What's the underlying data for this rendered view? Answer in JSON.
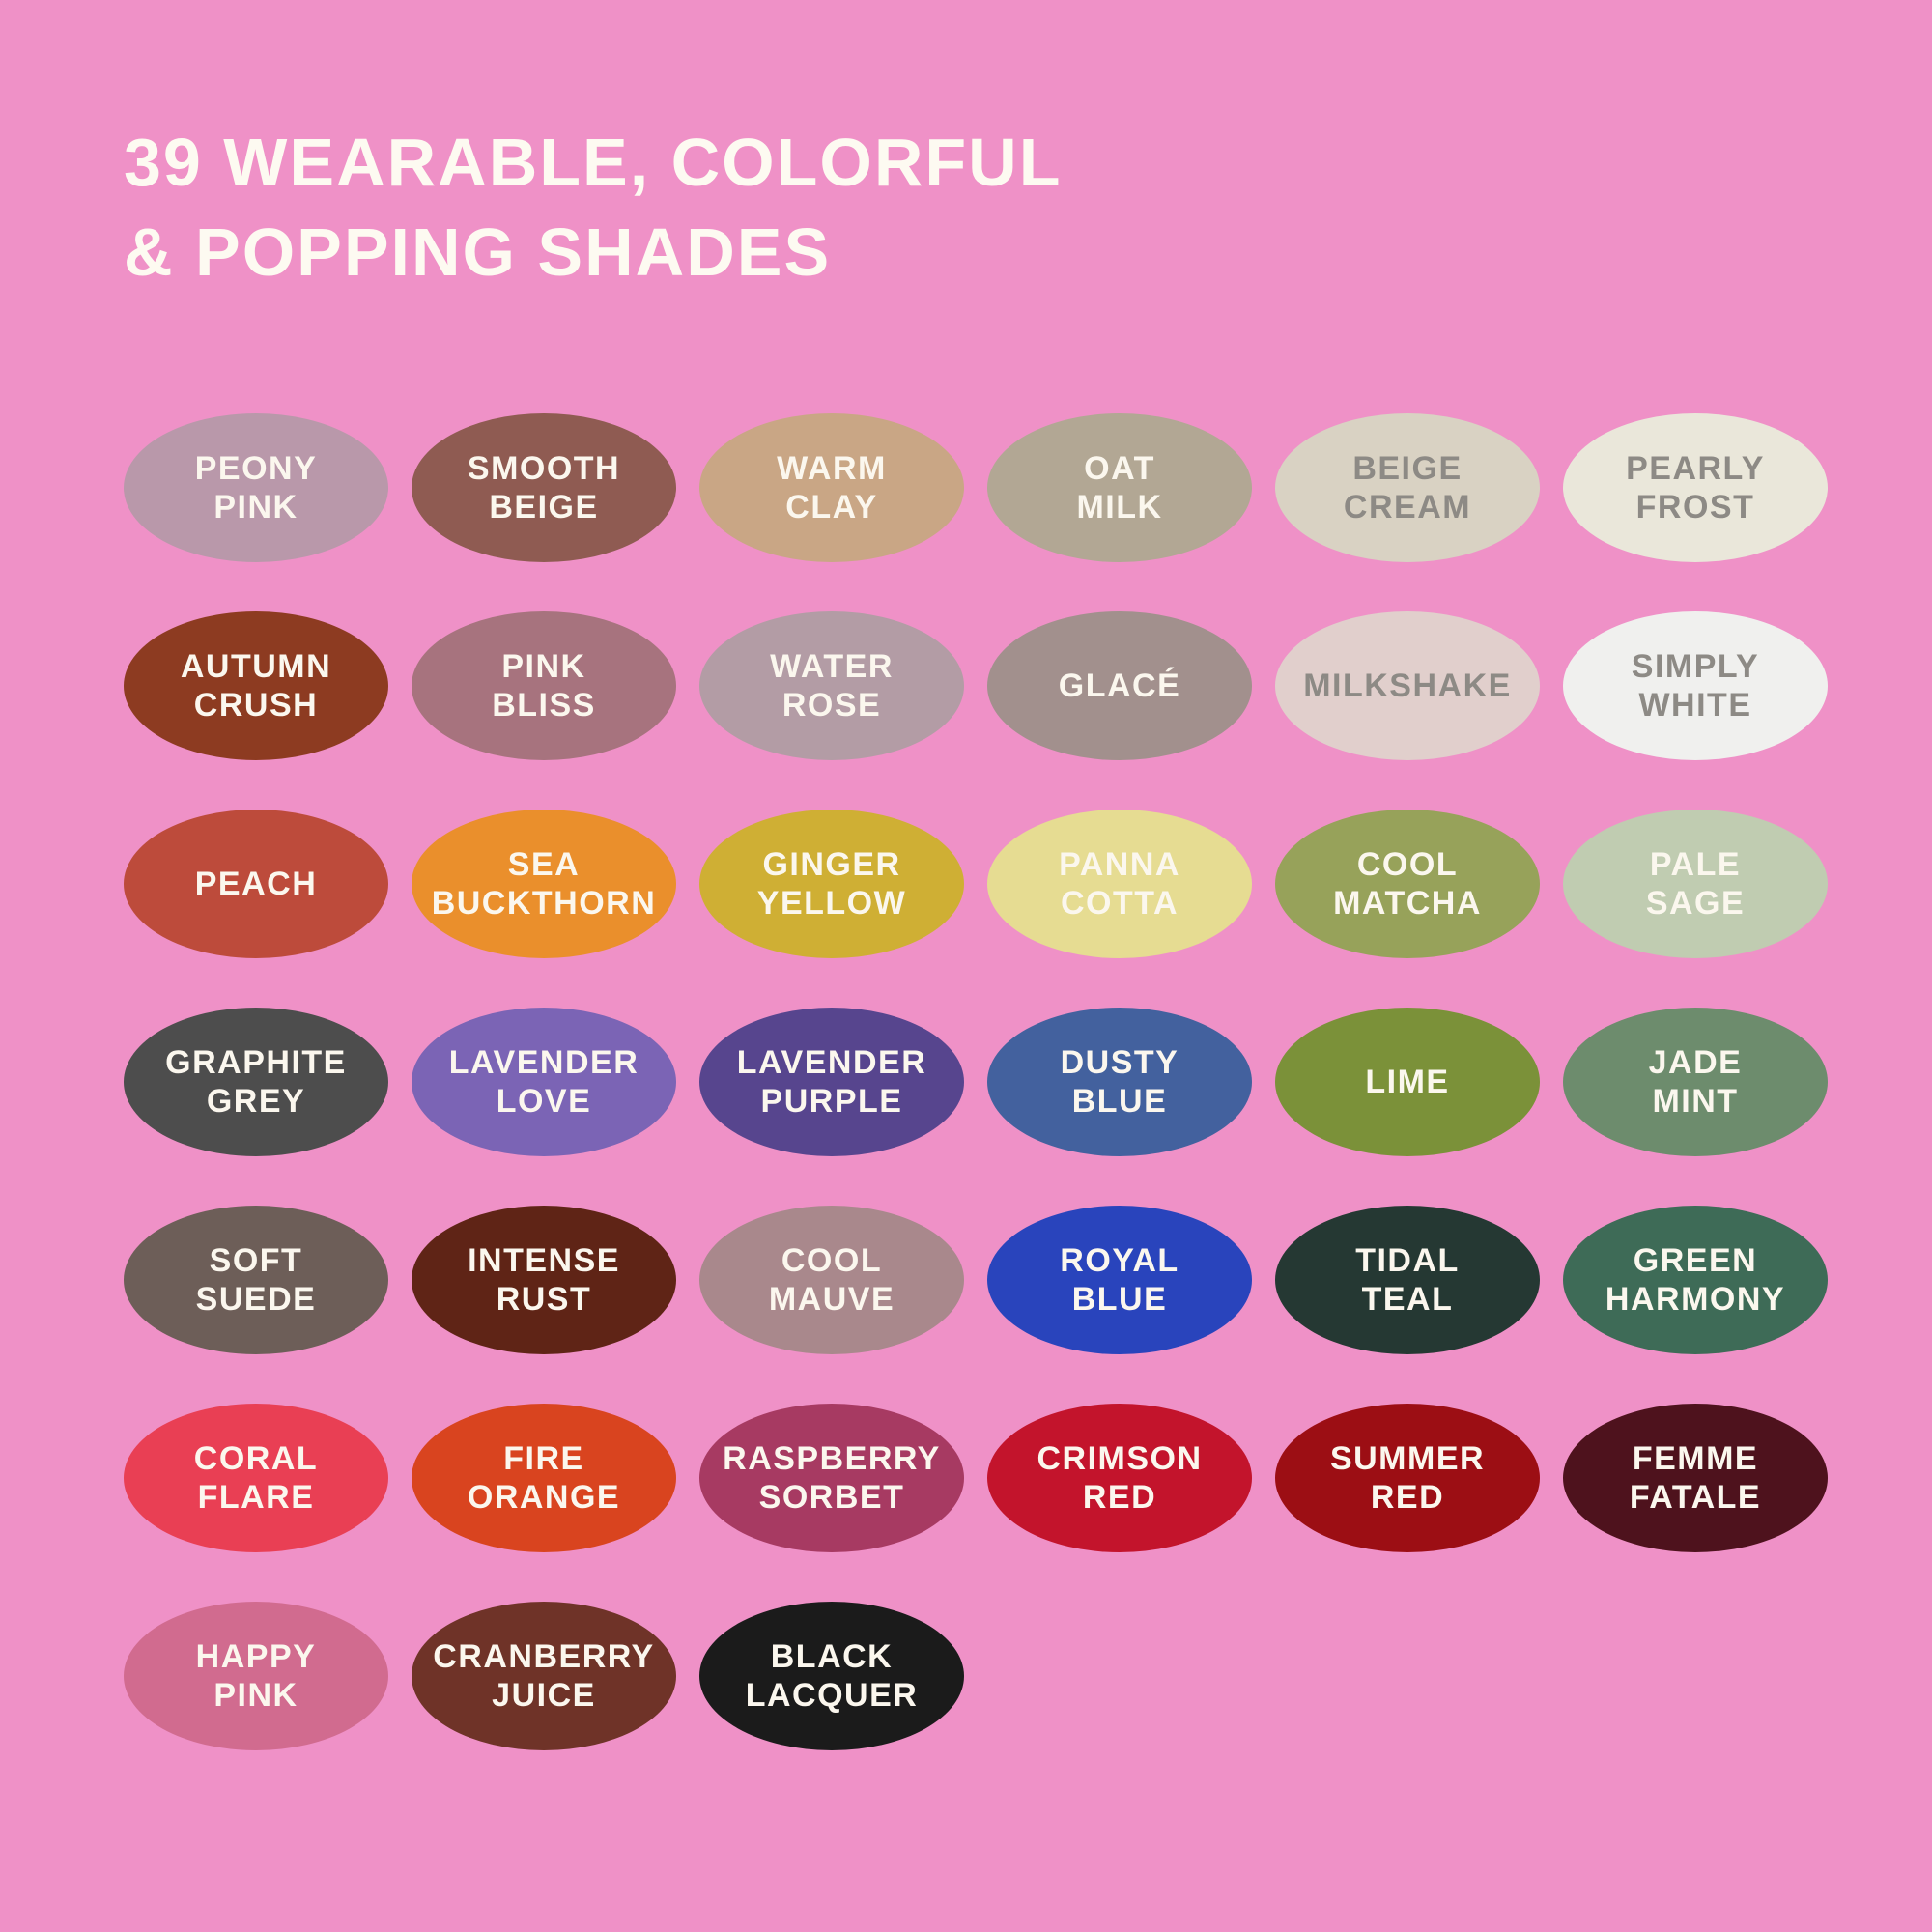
{
  "title": {
    "line1": "39 WEARABLE, COLORFUL",
    "line2": "& POPPING SHADES"
  },
  "background_color": "#EF91C7",
  "text_colors": {
    "light": "#FBF7EE",
    "muted": "#8D8A85"
  },
  "swatches": [
    {
      "id": "peony-pink",
      "label_lines": [
        "PEONY",
        "PINK"
      ],
      "color": "#B998AA",
      "text": "light"
    },
    {
      "id": "smooth-beige",
      "label_lines": [
        "SMOOTH",
        "BEIGE"
      ],
      "color": "#8F5B52",
      "text": "light"
    },
    {
      "id": "warm-clay",
      "label_lines": [
        "WARM",
        "CLAY"
      ],
      "color": "#C9A685",
      "text": "light"
    },
    {
      "id": "oat-milk",
      "label_lines": [
        "OAT",
        "MILK"
      ],
      "color": "#B2A794",
      "text": "light"
    },
    {
      "id": "beige-cream",
      "label_lines": [
        "BEIGE",
        "CREAM"
      ],
      "color": "#D9D2C3",
      "text": "muted"
    },
    {
      "id": "pearly-frost",
      "label_lines": [
        "PEARLY",
        "FROST"
      ],
      "color": "#EAE7DA",
      "text": "muted"
    },
    {
      "id": "autumn-crush",
      "label_lines": [
        "AUTUMN",
        "CRUSH"
      ],
      "color": "#8D3B21",
      "text": "light"
    },
    {
      "id": "pink-bliss",
      "label_lines": [
        "PINK",
        "BLISS"
      ],
      "color": "#A7737E",
      "text": "light"
    },
    {
      "id": "water-rose",
      "label_lines": [
        "WATER",
        "ROSE"
      ],
      "color": "#B39CA5",
      "text": "light"
    },
    {
      "id": "glace",
      "label_lines": [
        "GLACÉ"
      ],
      "color": "#A2908D",
      "text": "light"
    },
    {
      "id": "milkshake",
      "label_lines": [
        "MILKSHAKE"
      ],
      "color": "#E1CFCC",
      "text": "muted"
    },
    {
      "id": "simply-white",
      "label_lines": [
        "SIMPLY",
        "WHITE"
      ],
      "color": "#F0F0EE",
      "text": "muted"
    },
    {
      "id": "peach",
      "label_lines": [
        "PEACH"
      ],
      "color": "#BD4B3B",
      "text": "light"
    },
    {
      "id": "sea-buckthorn",
      "label_lines": [
        "SEA",
        "BUCKTHORN"
      ],
      "color": "#EA8F2C",
      "text": "light"
    },
    {
      "id": "ginger-yellow",
      "label_lines": [
        "GINGER",
        "YELLOW"
      ],
      "color": "#CFAF34",
      "text": "light"
    },
    {
      "id": "panna-cotta",
      "label_lines": [
        "PANNA",
        "COTTA"
      ],
      "color": "#E6DC92",
      "text": "light"
    },
    {
      "id": "cool-matcha",
      "label_lines": [
        "COOL",
        "MATCHA"
      ],
      "color": "#97A25A",
      "text": "light"
    },
    {
      "id": "pale-sage",
      "label_lines": [
        "PALE",
        "SAGE"
      ],
      "color": "#C0CCB1",
      "text": "light"
    },
    {
      "id": "graphite-grey",
      "label_lines": [
        "GRAPHITE",
        "GREY"
      ],
      "color": "#4D4D4D",
      "text": "light"
    },
    {
      "id": "lavender-love",
      "label_lines": [
        "LAVENDER",
        "LOVE"
      ],
      "color": "#7B64B5",
      "text": "light"
    },
    {
      "id": "lavender-purple",
      "label_lines": [
        "LAVENDER",
        "PURPLE"
      ],
      "color": "#57458E",
      "text": "light"
    },
    {
      "id": "dusty-blue",
      "label_lines": [
        "DUSTY",
        "BLUE"
      ],
      "color": "#43619E",
      "text": "light"
    },
    {
      "id": "lime",
      "label_lines": [
        "LIME"
      ],
      "color": "#7B9139",
      "text": "light"
    },
    {
      "id": "jade-mint",
      "label_lines": [
        "JADE",
        "MINT"
      ],
      "color": "#6D8C6D",
      "text": "light"
    },
    {
      "id": "soft-suede",
      "label_lines": [
        "SOFT",
        "SUEDE"
      ],
      "color": "#6D5E58",
      "text": "light"
    },
    {
      "id": "intense-rust",
      "label_lines": [
        "INTENSE",
        "RUST"
      ],
      "color": "#5F2416",
      "text": "light"
    },
    {
      "id": "cool-mauve",
      "label_lines": [
        "COOL",
        "MAUVE"
      ],
      "color": "#A9888C",
      "text": "light"
    },
    {
      "id": "royal-blue",
      "label_lines": [
        "ROYAL",
        "BLUE"
      ],
      "color": "#2944BC",
      "text": "light"
    },
    {
      "id": "tidal-teal",
      "label_lines": [
        "TIDAL",
        "TEAL"
      ],
      "color": "#253833",
      "text": "light"
    },
    {
      "id": "green-harmony",
      "label_lines": [
        "GREEN",
        "HARMONY"
      ],
      "color": "#3E6B57",
      "text": "light"
    },
    {
      "id": "coral-flare",
      "label_lines": [
        "CORAL",
        "FLARE"
      ],
      "color": "#E93F54",
      "text": "light"
    },
    {
      "id": "fire-orange",
      "label_lines": [
        "FIRE",
        "ORANGE"
      ],
      "color": "#D9441F",
      "text": "light"
    },
    {
      "id": "raspberry-sorbet",
      "label_lines": [
        "RASPBERRY",
        "SORBET"
      ],
      "color": "#A73A62",
      "text": "light"
    },
    {
      "id": "crimson-red",
      "label_lines": [
        "CRIMSON",
        "RED"
      ],
      "color": "#C3142C",
      "text": "light"
    },
    {
      "id": "summer-red",
      "label_lines": [
        "SUMMER",
        "RED"
      ],
      "color": "#9C0E14",
      "text": "light"
    },
    {
      "id": "femme-fatale",
      "label_lines": [
        "FEMME",
        "FATALE"
      ],
      "color": "#4E121D",
      "text": "light"
    },
    {
      "id": "happy-pink",
      "label_lines": [
        "HAPPY",
        "PINK"
      ],
      "color": "#D16B8F",
      "text": "light"
    },
    {
      "id": "cranberry-juice",
      "label_lines": [
        "CRANBERRY",
        "JUICE"
      ],
      "color": "#6F3328",
      "text": "light"
    },
    {
      "id": "black-lacquer",
      "label_lines": [
        "BLACK",
        "LACQUER"
      ],
      "color": "#1B1B1B",
      "text": "light"
    }
  ],
  "chart_data": {
    "type": "table",
    "title": "39 WEARABLE, COLORFUL & POPPING SHADES",
    "columns": [
      "shade_name",
      "color_hex"
    ],
    "rows": [
      [
        "PEONY PINK",
        "#B998AA"
      ],
      [
        "SMOOTH BEIGE",
        "#8F5B52"
      ],
      [
        "WARM CLAY",
        "#C9A685"
      ],
      [
        "OAT MILK",
        "#B2A794"
      ],
      [
        "BEIGE CREAM",
        "#D9D2C3"
      ],
      [
        "PEARLY FROST",
        "#EAE7DA"
      ],
      [
        "AUTUMN CRUSH",
        "#8D3B21"
      ],
      [
        "PINK BLISS",
        "#A7737E"
      ],
      [
        "WATER ROSE",
        "#B39CA5"
      ],
      [
        "GLACÉ",
        "#A2908D"
      ],
      [
        "MILKSHAKE",
        "#E1CFCC"
      ],
      [
        "SIMPLY WHITE",
        "#F0F0EE"
      ],
      [
        "PEACH",
        "#BD4B3B"
      ],
      [
        "SEA BUCKTHORN",
        "#EA8F2C"
      ],
      [
        "GINGER YELLOW",
        "#CFAF34"
      ],
      [
        "PANNA COTTA",
        "#E6DC92"
      ],
      [
        "COOL MATCHA",
        "#97A25A"
      ],
      [
        "PALE SAGE",
        "#C0CCB1"
      ],
      [
        "GRAPHITE GREY",
        "#4D4D4D"
      ],
      [
        "LAVENDER LOVE",
        "#7B64B5"
      ],
      [
        "LAVENDER PURPLE",
        "#57458E"
      ],
      [
        "DUSTY BLUE",
        "#43619E"
      ],
      [
        "LIME",
        "#7B9139"
      ],
      [
        "JADE MINT",
        "#6D8C6D"
      ],
      [
        "SOFT SUEDE",
        "#6D5E58"
      ],
      [
        "INTENSE RUST",
        "#5F2416"
      ],
      [
        "COOL MAUVE",
        "#A9888C"
      ],
      [
        "ROYAL BLUE",
        "#2944BC"
      ],
      [
        "TIDAL TEAL",
        "#253833"
      ],
      [
        "GREEN HARMONY",
        "#3E6B57"
      ],
      [
        "CORAL FLARE",
        "#E93F54"
      ],
      [
        "FIRE ORANGE",
        "#D9441F"
      ],
      [
        "RASPBERRY SORBET",
        "#A73A62"
      ],
      [
        "CRIMSON RED",
        "#C3142C"
      ],
      [
        "SUMMER RED",
        "#9C0E14"
      ],
      [
        "FEMME FATALE",
        "#4E121D"
      ],
      [
        "HAPPY PINK",
        "#D16B8F"
      ],
      [
        "CRANBERRY JUICE",
        "#6F3328"
      ],
      [
        "BLACK LACQUER",
        "#1B1B1B"
      ]
    ]
  }
}
